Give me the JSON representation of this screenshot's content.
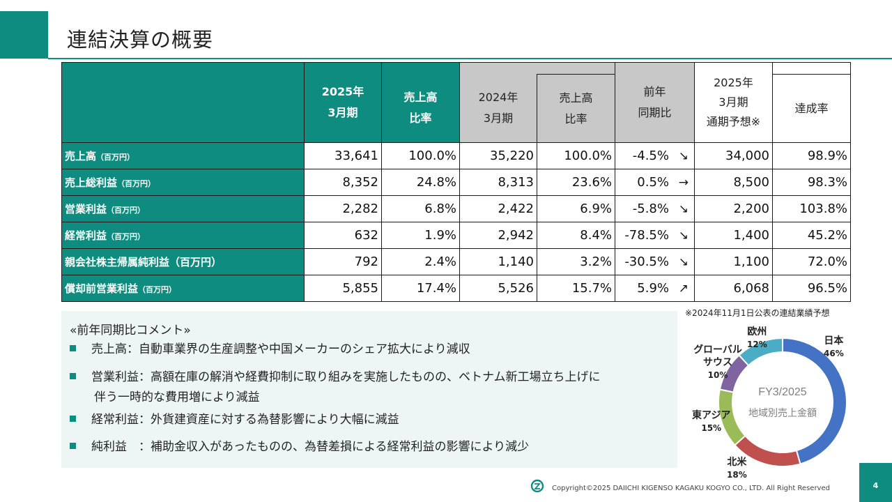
{
  "page": {
    "title": "連結決算の概要",
    "page_number": "4"
  },
  "table": {
    "header": {
      "fy2025": [
        "2025年",
        "3月期"
      ],
      "fy2025_ratio": [
        "売上高",
        "比率"
      ],
      "fy2024": [
        "2024年",
        "3月期"
      ],
      "fy2024_ratio": [
        "売上高",
        "比率"
      ],
      "yoy": [
        "前年",
        "同期比"
      ],
      "forecast": [
        "2025年",
        "3月期",
        "通期予想※"
      ],
      "achievement": "達成率"
    },
    "rows": [
      {
        "label": "売上高",
        "unit": "（百万円）",
        "v2025": "33,641",
        "r2025": "100.0%",
        "v2024": "35,220",
        "r2024": "100.0%",
        "yoy": "-4.5%",
        "arrow": "↘",
        "forecast": "34,000",
        "achievement": "98.9%"
      },
      {
        "label": "売上総利益",
        "unit": "（百万円）",
        "v2025": "8,352",
        "r2025": "24.8%",
        "v2024": "8,313",
        "r2024": "23.6%",
        "yoy": "0.5%",
        "arrow": "→",
        "forecast": "8,500",
        "achievement": "98.3%"
      },
      {
        "label": "営業利益",
        "unit": "（百万円）",
        "v2025": "2,282",
        "r2025": "6.8%",
        "v2024": "2,422",
        "r2024": "6.9%",
        "yoy": "-5.8%",
        "arrow": "↘",
        "forecast": "2,200",
        "achievement": "103.8%"
      },
      {
        "label": "経常利益",
        "unit": "（百万円）",
        "v2025": "632",
        "r2025": "1.9%",
        "v2024": "2,942",
        "r2024": "8.4%",
        "yoy": "-78.5%",
        "arrow": "↘",
        "forecast": "1,400",
        "achievement": "45.2%"
      },
      {
        "label": "親会社株主帰属純利益",
        "unit": "（百万円）",
        "v2025": "792",
        "r2025": "2.4%",
        "v2024": "1,140",
        "r2024": "3.2%",
        "yoy": "-30.5%",
        "arrow": "↘",
        "forecast": "1,100",
        "achievement": "72.0%"
      },
      {
        "label": "償却前営業利益",
        "unit": "（百万円）",
        "v2025": "5,855",
        "r2025": "17.4%",
        "v2024": "5,526",
        "r2024": "15.7%",
        "yoy": "5.9%",
        "arrow": "↗",
        "forecast": "6,068",
        "achievement": "96.5%"
      }
    ],
    "footnote": "※2024年11月1日公表の連結業績予想"
  },
  "comments": {
    "heading": "«前年同期比コメント»",
    "items": [
      {
        "lines": [
          "売上高：自動車業界の生産調整や中国メーカーのシェア拡大により減収"
        ]
      },
      {
        "lines": [
          "営業利益：高額在庫の解消や経費抑制に取り組みを実施したものの、ベトナム新工場立ち上げに",
          "伴う一時的な費用増により減益"
        ]
      },
      {
        "lines": [
          "経常利益：外貨建資産に対する為替影響により大幅に減益"
        ]
      },
      {
        "lines": [
          "純利益　：補助金収入があったものの、為替差損による経常利益の影響により減少"
        ]
      }
    ]
  },
  "chart_data": {
    "type": "pie",
    "title": "FY3/2025",
    "subtitle": "地域別売上金額",
    "categories": [
      "日本",
      "北米",
      "東アジア",
      "グローバルサウス",
      "欧州"
    ],
    "display_labels": [
      "日本",
      "北米",
      "東アジア",
      "グローバル\nサウス",
      "欧州"
    ],
    "values": [
      46,
      18,
      15,
      10,
      12
    ],
    "value_labels": [
      "46%",
      "18%",
      "15%",
      "10%",
      "12%"
    ],
    "colors": [
      "#4472c4",
      "#c0504d",
      "#9bbb59",
      "#8064a2",
      "#4bacc6"
    ],
    "donut": true
  },
  "footer": {
    "copyright": "Copyright©2025 DAIICHI KIGENSO KAGAKU KOGYO CO., LTD. All Right Reserved"
  },
  "colors": {
    "accent": "#0f8c80",
    "header_gray": "#c8c8c8",
    "panel_bg": "#eef6f5"
  }
}
